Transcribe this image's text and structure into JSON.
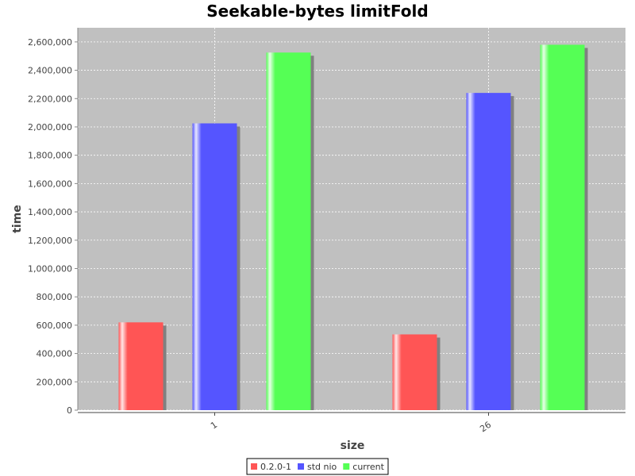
{
  "chart_data": {
    "type": "bar",
    "title": "Seekable-bytes limitFold",
    "xlabel": "size",
    "ylabel": "time",
    "categories": [
      "1",
      "26"
    ],
    "series": [
      {
        "name": "0.2.0-1",
        "color": "#ff5555",
        "values": [
          620000,
          535000
        ]
      },
      {
        "name": "std nio",
        "color": "#5555ff",
        "values": [
          2025000,
          2240000
        ]
      },
      {
        "name": "current",
        "color": "#55ff55",
        "values": [
          2525000,
          2580000
        ]
      }
    ],
    "ylim": [
      0,
      2700000
    ],
    "yticks": [
      0,
      200000,
      400000,
      600000,
      800000,
      1000000,
      1200000,
      1400000,
      1600000,
      1800000,
      2000000,
      2200000,
      2400000,
      2600000
    ],
    "ytick_labels": [
      "0",
      "200,000",
      "400,000",
      "600,000",
      "800,000",
      "1,000,000",
      "1,200,000",
      "1,400,000",
      "1,600,000",
      "1,800,000",
      "2,000,000",
      "2,200,000",
      "2,400,000",
      "2,600,000"
    ],
    "grid": true,
    "legend_position": "bottom-center",
    "plot_background": "#c0c0c0"
  }
}
